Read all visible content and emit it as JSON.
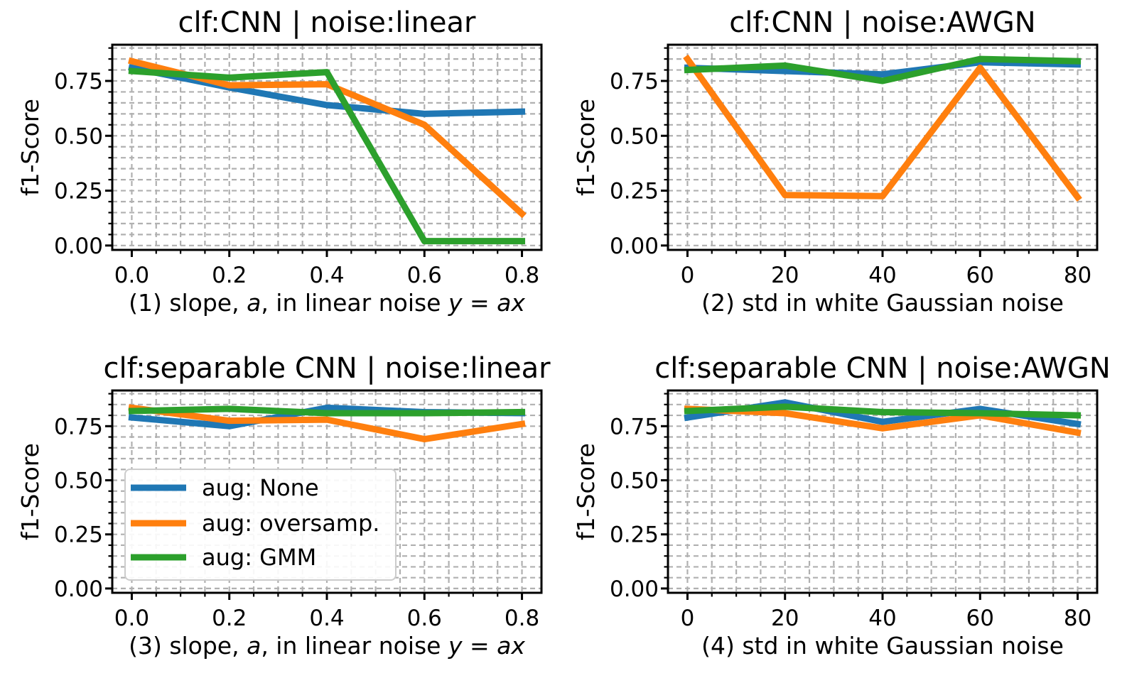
{
  "figure": {
    "background": "#ffffff",
    "text_color": "#000000",
    "grid_color": "#b0b0b0",
    "frame_color": "#000000",
    "legend_border_color": "#cccccc",
    "legend_background": "#ffffff"
  },
  "series_colors": {
    "blue": "#1f77b4",
    "orange": "#ff7f0e",
    "green": "#2ca02c"
  },
  "legend": {
    "items": [
      {
        "label": "aug: None",
        "color": "#1f77b4"
      },
      {
        "label": "aug: oversamp.",
        "color": "#ff7f0e"
      },
      {
        "label": "aug: GMM",
        "color": "#2ca02c"
      }
    ]
  },
  "chart_data": [
    {
      "type": "line",
      "title": "clf:CNN | noise:linear",
      "xlabel": "(1) slope, a, in linear noise y = ax",
      "xlabel_segments": [
        {
          "text": "(1) slope, ",
          "italic": false
        },
        {
          "text": "a",
          "italic": true
        },
        {
          "text": ", in linear noise ",
          "italic": false
        },
        {
          "text": "y",
          "italic": true
        },
        {
          "text": " = ",
          "italic": false
        },
        {
          "text": "ax",
          "italic": true
        }
      ],
      "ylabel": "f1-Score",
      "x": [
        0.0,
        0.2,
        0.4,
        0.6,
        0.8
      ],
      "xtick_labels": [
        "0.0",
        "0.2",
        "0.4",
        "0.6",
        "0.8"
      ],
      "ytick_values": [
        0.0,
        0.25,
        0.5,
        0.75
      ],
      "ytick_labels": [
        "0.00",
        "0.25",
        "0.50",
        "0.75"
      ],
      "xlim": [
        -0.04,
        0.84
      ],
      "ylim": [
        -0.02,
        0.915
      ],
      "x_minor_step": 0.05,
      "y_minor_step": 0.05,
      "grid": "major+minor dashed",
      "show_legend": false,
      "series": [
        {
          "name": "aug: None",
          "color": "#1f77b4",
          "values": [
            0.81,
            0.72,
            0.64,
            0.6,
            0.61
          ]
        },
        {
          "name": "aug: oversamp.",
          "color": "#ff7f0e",
          "values": [
            0.84,
            0.73,
            0.735,
            0.55,
            0.145
          ]
        },
        {
          "name": "aug: GMM",
          "color": "#2ca02c",
          "values": [
            0.795,
            0.765,
            0.79,
            0.02,
            0.02
          ]
        }
      ]
    },
    {
      "type": "line",
      "title": "clf:CNN | noise:AWGN",
      "xlabel": "(2) std in white Gaussian noise",
      "xlabel_segments": [
        {
          "text": "(2) std in white Gaussian noise",
          "italic": false
        }
      ],
      "ylabel": "f1-Score",
      "x": [
        0,
        20,
        40,
        60,
        80
      ],
      "xtick_labels": [
        "0",
        "20",
        "40",
        "60",
        "80"
      ],
      "ytick_values": [
        0.0,
        0.25,
        0.5,
        0.75
      ],
      "ytick_labels": [
        "0.00",
        "0.25",
        "0.50",
        "0.75"
      ],
      "xlim": [
        -4,
        84
      ],
      "ylim": [
        -0.02,
        0.915
      ],
      "x_minor_step": 5,
      "y_minor_step": 0.05,
      "grid": "major+minor dashed",
      "show_legend": false,
      "series": [
        {
          "name": "aug: None",
          "color": "#1f77b4",
          "values": [
            0.81,
            0.795,
            0.78,
            0.835,
            0.825
          ]
        },
        {
          "name": "aug: oversamp.",
          "color": "#ff7f0e",
          "values": [
            0.85,
            0.23,
            0.225,
            0.81,
            0.22
          ]
        },
        {
          "name": "aug: GMM",
          "color": "#2ca02c",
          "values": [
            0.8,
            0.82,
            0.75,
            0.85,
            0.84
          ]
        }
      ]
    },
    {
      "type": "line",
      "title": "clf:separable CNN | noise:linear",
      "xlabel": "(3) slope, a, in linear noise y = ax",
      "xlabel_segments": [
        {
          "text": "(3) slope, ",
          "italic": false
        },
        {
          "text": "a",
          "italic": true
        },
        {
          "text": ", in linear noise ",
          "italic": false
        },
        {
          "text": "y",
          "italic": true
        },
        {
          "text": " = ",
          "italic": false
        },
        {
          "text": "ax",
          "italic": true
        }
      ],
      "ylabel": "f1-Score",
      "x": [
        0.0,
        0.2,
        0.4,
        0.6,
        0.8
      ],
      "xtick_labels": [
        "0.0",
        "0.2",
        "0.4",
        "0.6",
        "0.8"
      ],
      "ytick_values": [
        0.0,
        0.25,
        0.5,
        0.75
      ],
      "ytick_labels": [
        "0.00",
        "0.25",
        "0.50",
        "0.75"
      ],
      "xlim": [
        -0.04,
        0.84
      ],
      "ylim": [
        -0.02,
        0.915
      ],
      "x_minor_step": 0.05,
      "y_minor_step": 0.05,
      "grid": "major+minor dashed",
      "show_legend": true,
      "legend_labels": [
        "aug: None",
        "aug: oversamp.",
        "aug: GMM"
      ],
      "series": [
        {
          "name": "aug: None",
          "color": "#1f77b4",
          "values": [
            0.79,
            0.75,
            0.835,
            0.815,
            0.81
          ]
        },
        {
          "name": "aug: oversamp.",
          "color": "#ff7f0e",
          "values": [
            0.835,
            0.775,
            0.78,
            0.69,
            0.76
          ]
        },
        {
          "name": "aug: GMM",
          "color": "#2ca02c",
          "values": [
            0.82,
            0.83,
            0.81,
            0.81,
            0.815
          ]
        }
      ]
    },
    {
      "type": "line",
      "title": "clf:separable CNN | noise:AWGN",
      "xlabel": "(4) std in white Gaussian noise",
      "xlabel_segments": [
        {
          "text": "(4) std in white Gaussian noise",
          "italic": false
        }
      ],
      "ylabel": "f1-Score",
      "x": [
        0,
        20,
        40,
        60,
        80
      ],
      "xtick_labels": [
        "0",
        "20",
        "40",
        "60",
        "80"
      ],
      "ytick_values": [
        0.0,
        0.25,
        0.5,
        0.75
      ],
      "ytick_labels": [
        "0.00",
        "0.25",
        "0.50",
        "0.75"
      ],
      "xlim": [
        -4,
        84
      ],
      "ylim": [
        -0.02,
        0.915
      ],
      "x_minor_step": 5,
      "y_minor_step": 0.05,
      "grid": "major+minor dashed",
      "show_legend": false,
      "series": [
        {
          "name": "aug: None",
          "color": "#1f77b4",
          "values": [
            0.79,
            0.86,
            0.77,
            0.83,
            0.76
          ]
        },
        {
          "name": "aug: oversamp.",
          "color": "#ff7f0e",
          "values": [
            0.83,
            0.81,
            0.74,
            0.8,
            0.72
          ]
        },
        {
          "name": "aug: GMM",
          "color": "#2ca02c",
          "values": [
            0.82,
            0.84,
            0.815,
            0.81,
            0.8
          ]
        }
      ]
    }
  ]
}
